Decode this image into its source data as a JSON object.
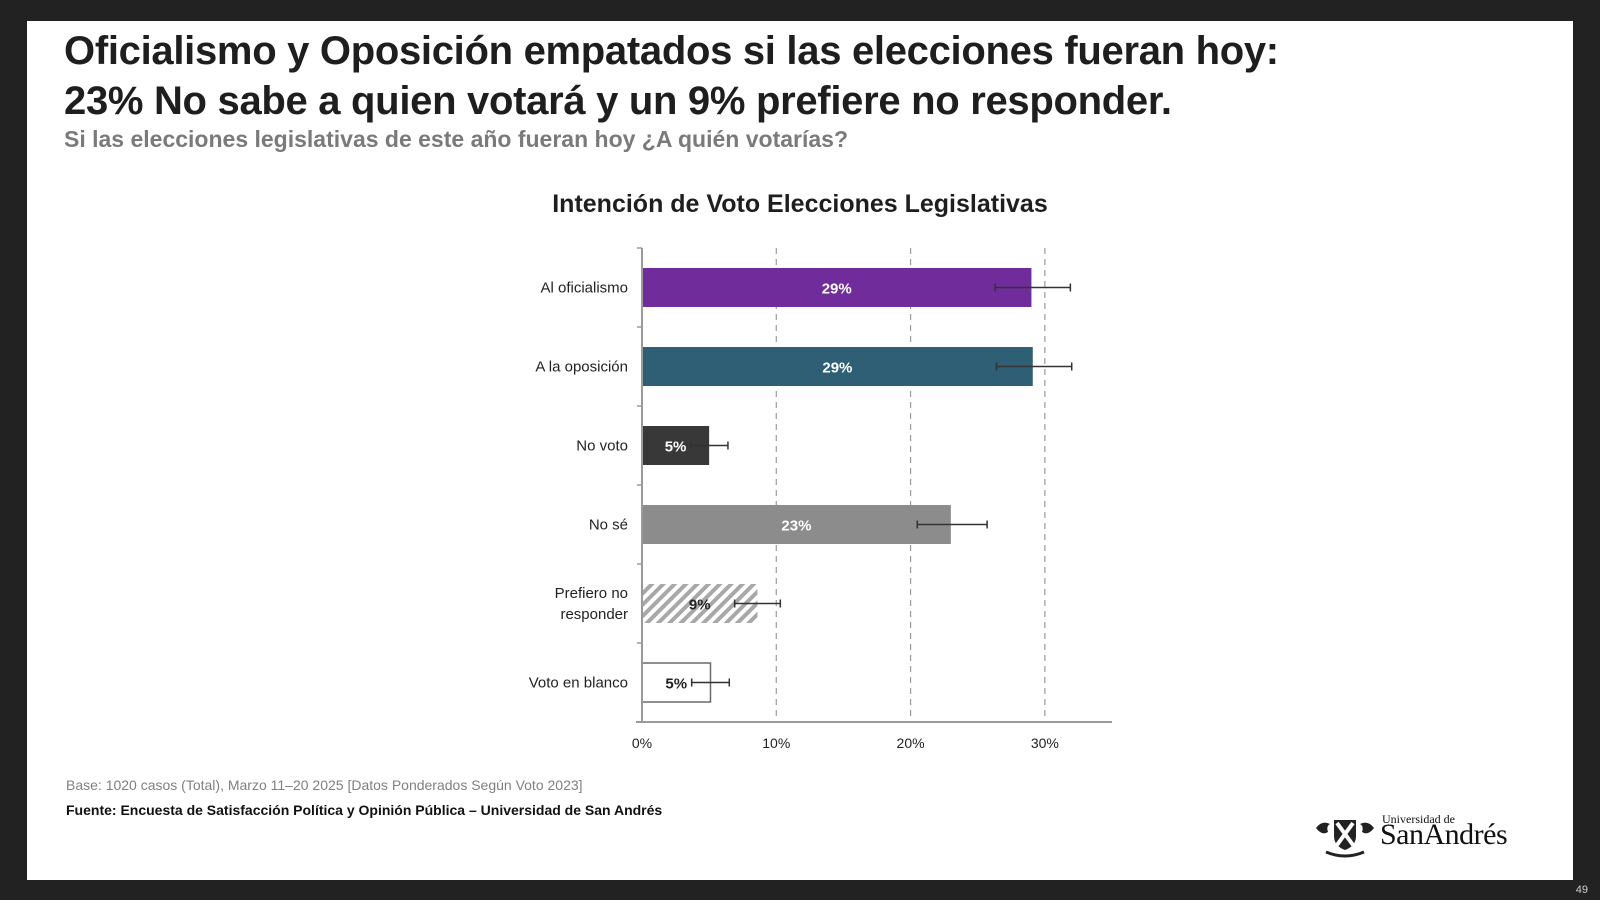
{
  "slide": {
    "title_line1": "Oficialismo y Oposición empatados si las elecciones fueran hoy:",
    "title_line2": "23% No sabe a quien votará y un 9% prefiere no responder.",
    "subtitle": "Si las elecciones legislativas de este año fueran hoy ¿A quién votarías?",
    "footer_base": "Base: 1020 casos (Total), Marzo 11–20 2025 [Datos Ponderados Según Voto 2023]",
    "footer_source": "Fuente: Encuesta de Satisfacción Política y Opinión Pública – Universidad de San Andrés",
    "logo_small": "Universidad de",
    "logo_big": "SanAndrés",
    "page_number": "49"
  },
  "chart_data": {
    "type": "bar",
    "orientation": "horizontal",
    "title": "Intención de Voto Elecciones Legislativas",
    "xlabel": "",
    "ylabel": "",
    "xlim": [
      0,
      35
    ],
    "x_ticks": [
      0,
      10,
      20,
      30
    ],
    "x_tick_labels": [
      "0%",
      "10%",
      "20%",
      "30%"
    ],
    "grid": "vertical dashed",
    "categories": [
      "Al oficialismo",
      "A la oposición",
      "No voto",
      "No sé",
      "Prefiero no responder",
      "Voto en blanco"
    ],
    "category_label_lines": [
      [
        "Al oficialismo"
      ],
      [
        "A la oposición"
      ],
      [
        "No voto"
      ],
      [
        "No sé"
      ],
      [
        "Prefiero no",
        "responder"
      ],
      [
        "Voto en blanco"
      ]
    ],
    "values": [
      29,
      29,
      5,
      23,
      9,
      5
    ],
    "plotted_values": [
      29.0,
      29.1,
      5.0,
      23.0,
      8.6,
      5.1
    ],
    "data_labels": [
      "29%",
      "29%",
      "5%",
      "23%",
      "9%",
      "5%"
    ],
    "error_bars": [
      [
        26.3,
        31.9
      ],
      [
        26.4,
        32.0
      ],
      [
        3.6,
        6.4
      ],
      [
        20.5,
        25.7
      ],
      [
        6.9,
        10.3
      ],
      [
        3.7,
        6.5
      ]
    ],
    "colors": [
      "#6f2c9a",
      "#2e5f74",
      "#383838",
      "#8c8c8c",
      "hatch-gray",
      "#ffffff"
    ],
    "label_colors": [
      "#ffffff",
      "#ffffff",
      "#ffffff",
      "#ffffff",
      "#222222",
      "#222222"
    ],
    "legend": "none"
  }
}
